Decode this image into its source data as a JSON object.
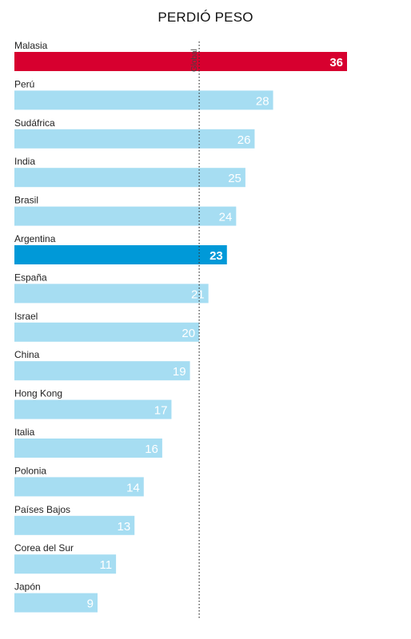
{
  "chart_data": {
    "type": "bar",
    "orientation": "horizontal",
    "title": "PERDIÓ PESO",
    "categories": [
      "Malasia",
      "Perú",
      "Sudáfrica",
      "India",
      "Brasil",
      "Argentina",
      "España",
      "Israel",
      "China",
      "Hong Kong",
      "Italia",
      "Polonia",
      "Países Bajos",
      "Corea del Sur",
      "Japón"
    ],
    "values": [
      36,
      28,
      26,
      25,
      24,
      23,
      21,
      20,
      19,
      17,
      16,
      14,
      13,
      11,
      9
    ],
    "highlight": {
      "Malasia": "#d7002f",
      "Argentina": "#0099d8"
    },
    "default_color": "#a6ddf2",
    "xlim": [
      0,
      36
    ],
    "reference_line": {
      "label": "Global",
      "value": 20
    }
  }
}
